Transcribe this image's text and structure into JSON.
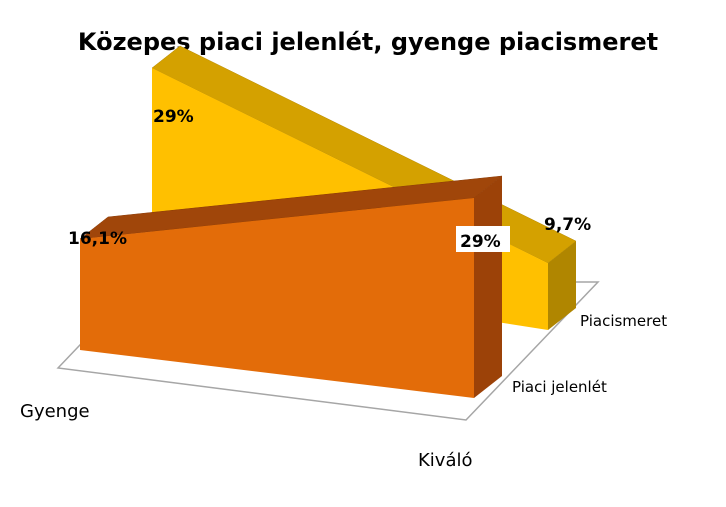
{
  "chart_data": {
    "type": "area",
    "title": "Közepes piaci jelenlét, gyenge piacismeret",
    "categories": [
      "Gyenge",
      "Kiváló"
    ],
    "series": [
      {
        "name": "Piaci jelenlét",
        "values": [
          16.1,
          29
        ],
        "labels": [
          "16,1%",
          "29%"
        ],
        "color": "#E36C09"
      },
      {
        "name": "Piacismeret",
        "values": [
          29,
          9.7
        ],
        "labels": [
          "29%",
          "9,7%"
        ],
        "color": "#FFC000"
      }
    ],
    "grid": false,
    "legend": "none"
  }
}
